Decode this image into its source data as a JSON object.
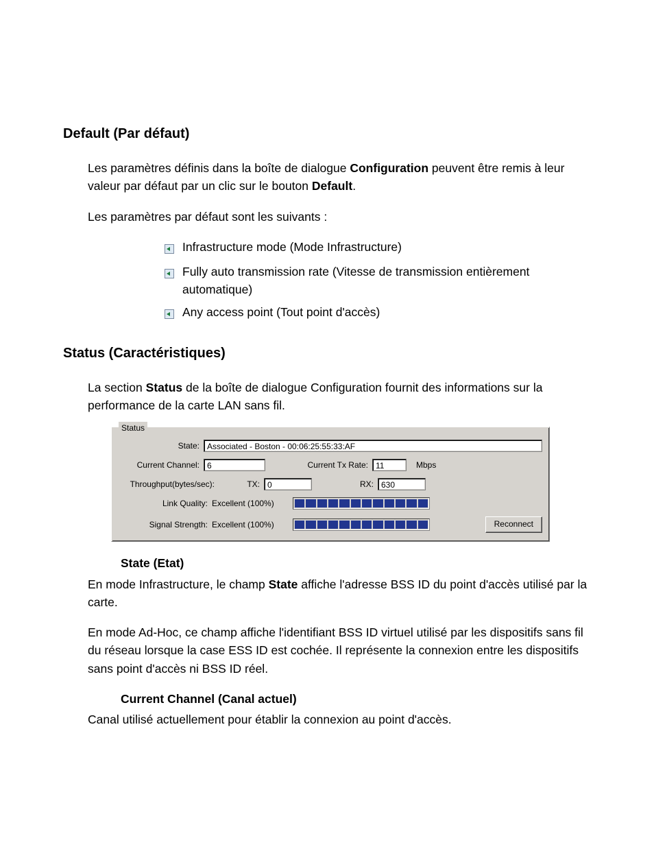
{
  "doc": {
    "section1": {
      "heading": "Default (Par défaut)",
      "p1_a": "Les paramètres définis dans la boîte de dialogue ",
      "p1_b1": "Configuration",
      "p1_c": " peuvent être remis à leur valeur par défaut par un clic sur le bouton ",
      "p1_b2": "Default",
      "p1_d": ".",
      "p2": "Les paramètres par défaut sont les suivants :",
      "bullets": [
        "Infrastructure mode (Mode Infrastructure)",
        "Fully auto transmission rate (Vitesse de transmission entièrement automatique)",
        "Any access point (Tout point d'accès)"
      ]
    },
    "section2": {
      "heading": "Status (Caractéristiques)",
      "p1_a": "La section ",
      "p1_b": "Status",
      "p1_c": " de la boîte de dialogue Configuration fournit des informations sur la performance de la carte LAN sans fil.",
      "state_head": "State (Etat)",
      "state_p1_a": "En mode Infrastructure, le champ ",
      "state_p1_b": "State",
      "state_p1_c": " affiche l'adresse BSS ID du point d'accès utilisé par la carte.",
      "state_p2": "En mode Ad-Hoc, ce champ affiche l'identifiant BSS ID virtuel utilisé par les dispositifs sans fil du réseau lorsque la case ESS ID est cochée. Il représente la connexion entre les dispositifs sans point d'accès ni BSS ID réel.",
      "chan_head": "Current Channel (Canal actuel)",
      "chan_p": "Canal utilisé actuellement pour établir la connexion au point d'accès."
    }
  },
  "panel": {
    "legend": "Status",
    "labels": {
      "state": "State:",
      "current_channel": "Current Channel:",
      "current_tx_rate": "Current Tx Rate:",
      "mbps": "Mbps",
      "throughput": "Throughput(bytes/sec):",
      "tx": "TX:",
      "rx": "RX:",
      "link_quality": "Link Quality:",
      "signal_strength": "Signal Strength:"
    },
    "values": {
      "state": "Associated - Boston - 00:06:25:55:33:AF",
      "current_channel": "6",
      "current_tx_rate": "11",
      "tx": "0",
      "rx": "630",
      "link_quality": "Excellent (100%)",
      "signal_strength": "Excellent (100%)"
    },
    "bars": {
      "segments": 12,
      "link_quality_filled": 12,
      "signal_strength_filled": 12,
      "fill_color": "#22368f",
      "empty_color": "#d6d3ce"
    },
    "reconnect": "Reconnect"
  },
  "icon": {
    "base": "#dfeaf4",
    "border": "#7a8aa0",
    "accent": "#1a7a3a"
  }
}
